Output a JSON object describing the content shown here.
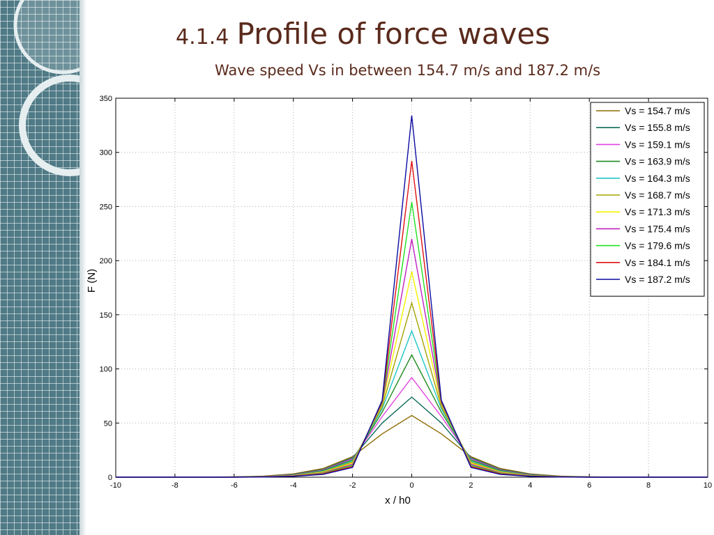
{
  "slide": {
    "title_number": "4.1.4",
    "title_text": "Profile of force waves",
    "subtitle": "Wave speed Vs in between 154.7 m/s and 187.2 m/s",
    "title_color": "#5a2a1c",
    "sidebar_color": "#4f7a86"
  },
  "chart_data": {
    "type": "line",
    "xlabel": "x / h0",
    "ylabel": "F (N)",
    "xlim": [
      -10,
      10
    ],
    "ylim": [
      0,
      350
    ],
    "xticks": [
      -10,
      -8,
      -6,
      -4,
      -2,
      0,
      2,
      4,
      6,
      8,
      10
    ],
    "yticks": [
      0,
      50,
      100,
      150,
      200,
      250,
      300,
      350
    ],
    "grid": true,
    "legend_position": "top-right",
    "x": [
      -10,
      -9,
      -8,
      -7,
      -6,
      -5,
      -4,
      -3,
      -2,
      -1,
      0,
      1,
      2,
      3,
      4,
      5,
      6,
      7,
      8,
      9,
      10
    ],
    "series": [
      {
        "name": "Vs = 154.7 m/s",
        "color": "#8b6b00",
        "values": [
          0,
          0,
          0,
          0,
          0.3,
          1,
          3,
          8,
          19,
          40,
          57,
          40,
          19,
          8,
          3,
          1,
          0.3,
          0,
          0,
          0,
          0
        ]
      },
      {
        "name": "Vs = 155.8 m/s",
        "color": "#0f6b5a",
        "values": [
          0,
          0,
          0,
          0,
          0.2,
          0.8,
          2.5,
          7,
          18,
          50,
          74,
          50,
          18,
          7,
          2.5,
          0.8,
          0.2,
          0,
          0,
          0,
          0
        ]
      },
      {
        "name": "Vs = 159.1 m/s",
        "color": "#e040e0",
        "values": [
          0,
          0,
          0,
          0,
          0.2,
          0.7,
          2.2,
          6.5,
          17,
          56,
          92,
          56,
          17,
          6.5,
          2.2,
          0.7,
          0.2,
          0,
          0,
          0,
          0
        ]
      },
      {
        "name": "Vs = 163.9 m/s",
        "color": "#1e8a1e",
        "values": [
          0,
          0,
          0,
          0,
          0.2,
          0.6,
          2,
          6,
          16,
          60,
          113,
          60,
          16,
          6,
          2,
          0.6,
          0.2,
          0,
          0,
          0,
          0
        ]
      },
      {
        "name": "Vs = 164.3 m/s",
        "color": "#20c4c4",
        "values": [
          0,
          0,
          0,
          0,
          0.1,
          0.5,
          1.8,
          5.5,
          15,
          63,
          135,
          63,
          15,
          5.5,
          1.8,
          0.5,
          0.1,
          0,
          0,
          0,
          0
        ]
      },
      {
        "name": "Vs = 168.7 m/s",
        "color": "#a3a300",
        "values": [
          0,
          0,
          0,
          0,
          0.1,
          0.5,
          1.6,
          5,
          14,
          65,
          161,
          65,
          14,
          5,
          1.6,
          0.5,
          0.1,
          0,
          0,
          0,
          0
        ]
      },
      {
        "name": "Vs = 171.3 m/s",
        "color": "#f2f200",
        "values": [
          0,
          0,
          0,
          0,
          0.1,
          0.4,
          1.4,
          4.5,
          13,
          67,
          190,
          67,
          13,
          4.5,
          1.4,
          0.4,
          0.1,
          0,
          0,
          0,
          0
        ]
      },
      {
        "name": "Vs = 175.4 m/s",
        "color": "#c020c0",
        "values": [
          0,
          0,
          0,
          0,
          0.1,
          0.4,
          1.2,
          4,
          12,
          68,
          220,
          68,
          12,
          4,
          1.2,
          0.4,
          0.1,
          0,
          0,
          0,
          0
        ]
      },
      {
        "name": "Vs = 179.6 m/s",
        "color": "#20e020",
        "values": [
          0,
          0,
          0,
          0,
          0.1,
          0.3,
          1,
          3.5,
          11,
          69,
          254,
          69,
          11,
          3.5,
          1,
          0.3,
          0.1,
          0,
          0,
          0,
          0
        ]
      },
      {
        "name": "Vs = 184.1 m/s",
        "color": "#e01010",
        "values": [
          0,
          0,
          0,
          0,
          0,
          0.3,
          0.9,
          3,
          10,
          70,
          292,
          70,
          10,
          3,
          0.9,
          0.3,
          0,
          0,
          0,
          0,
          0
        ]
      },
      {
        "name": "Vs = 187.2 m/s",
        "color": "#0a0aa0",
        "values": [
          0,
          0,
          0,
          0,
          0,
          0.2,
          0.8,
          2.5,
          9,
          71,
          334,
          71,
          9,
          2.5,
          0.8,
          0.2,
          0,
          0,
          0,
          0,
          0
        ]
      }
    ]
  }
}
